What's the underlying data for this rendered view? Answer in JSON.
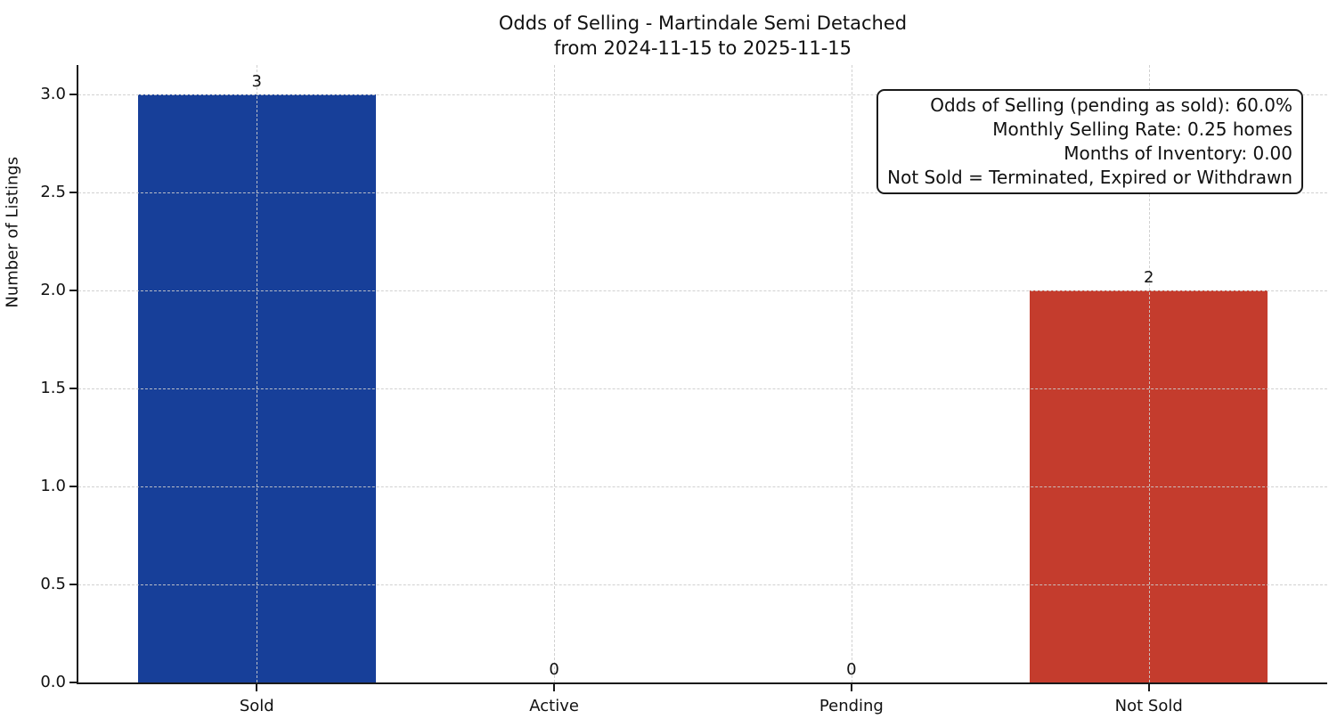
{
  "chart_data": {
    "type": "bar",
    "title_line1": "Odds of Selling - Martindale Semi Detached",
    "title_line2": "from 2024-11-15 to 2025-11-15",
    "categories": [
      "Sold",
      "Active",
      "Pending",
      "Not Sold"
    ],
    "values": [
      3,
      0,
      0,
      2
    ],
    "value_labels": [
      "3",
      "0",
      "0",
      "2"
    ],
    "bar_colors": [
      "#173f99",
      null,
      null,
      "#c43c2d"
    ],
    "ylabel": "Number of Listings",
    "xlabel": "",
    "ytick_labels": [
      "0.0",
      "0.5",
      "1.0",
      "1.5",
      "2.0",
      "2.5",
      "3.0"
    ],
    "ytick_values": [
      0,
      0.5,
      1,
      1.5,
      2,
      2.5,
      3
    ],
    "ylim": [
      0,
      3.15
    ],
    "xlim": [
      -0.6,
      3.6
    ],
    "bar_width_units": 0.8,
    "grid": {
      "on": true,
      "style": "dashed",
      "color": "#cccccc"
    },
    "legend": "none",
    "colors": {
      "sold_bar": "#173f99",
      "not_sold_bar": "#c43c2d",
      "axis": "#1a1a1a"
    },
    "annotation": {
      "lines": [
        "Odds of Selling (pending as sold): 60.0%",
        "Monthly Selling Rate: 0.25 homes",
        "Months of Inventory: 0.00",
        "Not Sold = Terminated, Expired or Withdrawn"
      ]
    }
  }
}
